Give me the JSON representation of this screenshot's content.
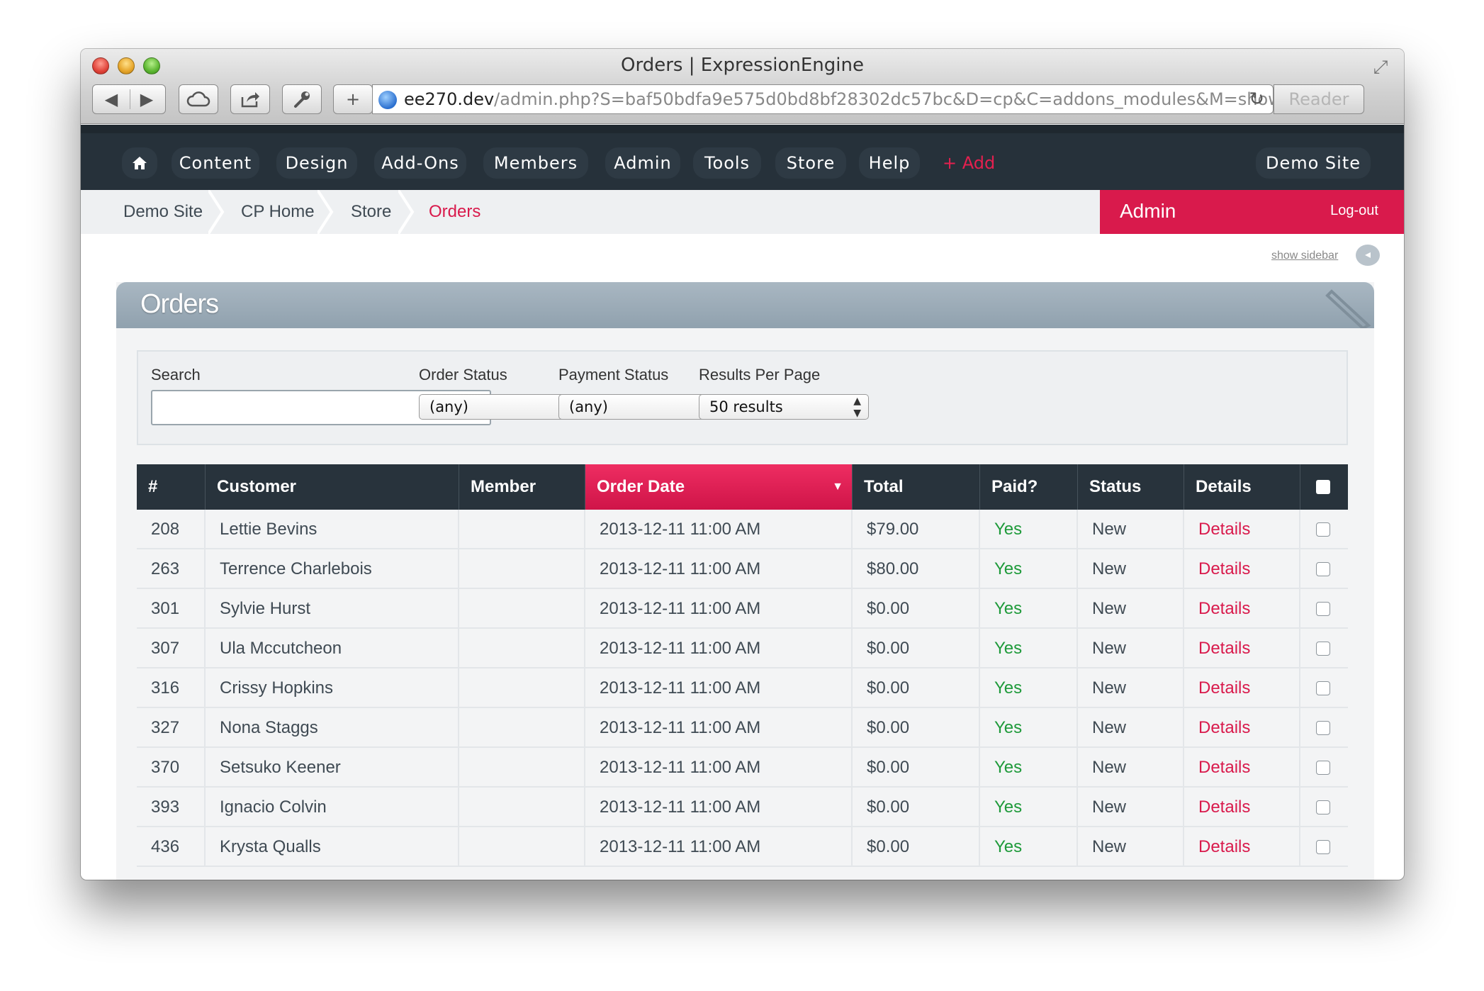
{
  "window": {
    "title": "Orders | ExpressionEngine",
    "address_host": "ee270.dev",
    "address_path": "/admin.php?S=baf50bdfa9e575d0bd8bf28302dc57bc&D=cp&C=addons_modules&M=show",
    "reader_label": "Reader"
  },
  "nav": {
    "items": [
      "Content",
      "Design",
      "Add-Ons",
      "Members",
      "Admin",
      "Tools",
      "Store",
      "Help"
    ],
    "add_label": "+ Add",
    "site_label": "Demo Site"
  },
  "breadcrumbs": [
    "Demo Site",
    "CP Home",
    "Store",
    "Orders"
  ],
  "user": {
    "name": "Admin",
    "logout_label": "Log-out"
  },
  "sidebar_toggle_label": "show sidebar",
  "panel": {
    "title": "Orders"
  },
  "filters": {
    "search_label": "Search",
    "search_value": "",
    "order_status_label": "Order Status",
    "order_status_value": "(any)",
    "payment_status_label": "Payment Status",
    "payment_status_value": "(any)",
    "results_label": "Results Per Page",
    "results_value": "50 results"
  },
  "table": {
    "columns": [
      "#",
      "Customer",
      "Member",
      "Order Date",
      "Total",
      "Paid?",
      "Status",
      "Details"
    ],
    "sorted_column": "Order Date",
    "rows": [
      {
        "id": "208",
        "customer": "Lettie Bevins",
        "member": "",
        "date": "2013-12-11 11:00 AM",
        "total": "$79.00",
        "paid": "Yes",
        "status": "New",
        "details": "Details"
      },
      {
        "id": "263",
        "customer": "Terrence Charlebois",
        "member": "",
        "date": "2013-12-11 11:00 AM",
        "total": "$80.00",
        "paid": "Yes",
        "status": "New",
        "details": "Details"
      },
      {
        "id": "301",
        "customer": "Sylvie Hurst",
        "member": "",
        "date": "2013-12-11 11:00 AM",
        "total": "$0.00",
        "paid": "Yes",
        "status": "New",
        "details": "Details"
      },
      {
        "id": "307",
        "customer": "Ula Mccutcheon",
        "member": "",
        "date": "2013-12-11 11:00 AM",
        "total": "$0.00",
        "paid": "Yes",
        "status": "New",
        "details": "Details"
      },
      {
        "id": "316",
        "customer": "Crissy Hopkins",
        "member": "",
        "date": "2013-12-11 11:00 AM",
        "total": "$0.00",
        "paid": "Yes",
        "status": "New",
        "details": "Details"
      },
      {
        "id": "327",
        "customer": "Nona Staggs",
        "member": "",
        "date": "2013-12-11 11:00 AM",
        "total": "$0.00",
        "paid": "Yes",
        "status": "New",
        "details": "Details"
      },
      {
        "id": "370",
        "customer": "Setsuko Keener",
        "member": "",
        "date": "2013-12-11 11:00 AM",
        "total": "$0.00",
        "paid": "Yes",
        "status": "New",
        "details": "Details"
      },
      {
        "id": "393",
        "customer": "Ignacio Colvin",
        "member": "",
        "date": "2013-12-11 11:00 AM",
        "total": "$0.00",
        "paid": "Yes",
        "status": "New",
        "details": "Details"
      },
      {
        "id": "436",
        "customer": "Krysta Qualls",
        "member": "",
        "date": "2013-12-11 11:00 AM",
        "total": "$0.00",
        "paid": "Yes",
        "status": "New",
        "details": "Details"
      }
    ]
  },
  "colors": {
    "accent": "#d91a4c",
    "nav_bg": "#26313a",
    "paid_yes": "#1e9a3a"
  }
}
